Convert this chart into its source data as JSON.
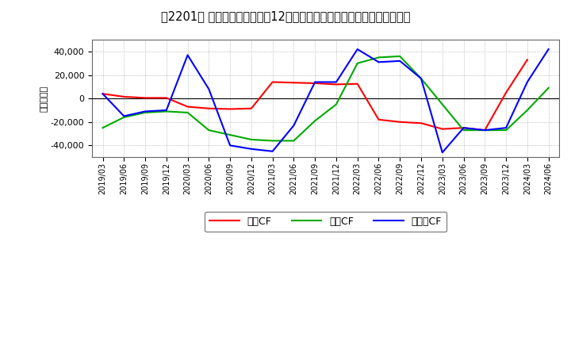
{
  "title_str": "【2201】 キャッシュフローの12か月移動合計の対前年同期増減額の推移",
  "ylabel": "（百万円）",
  "x_labels": [
    "2019/03",
    "2019/06",
    "2019/09",
    "2019/12",
    "2020/03",
    "2020/06",
    "2020/09",
    "2020/12",
    "2021/03",
    "2021/06",
    "2021/09",
    "2021/12",
    "2022/03",
    "2022/06",
    "2022/09",
    "2022/12",
    "2023/03",
    "2023/06",
    "2023/09",
    "2023/12",
    "2024/03",
    "2024/06"
  ],
  "operating_cf": [
    4000,
    1500,
    500,
    500,
    -7000,
    -8500,
    -9000,
    -8500,
    14000,
    13500,
    13000,
    12000,
    12500,
    -18000,
    -20000,
    -21000,
    -26000,
    -25000,
    -27000,
    5000,
    33000,
    null
  ],
  "investing_cf": [
    -25000,
    -16000,
    -12000,
    -11000,
    -12000,
    -27000,
    -31000,
    -35000,
    -36000,
    -36000,
    -19000,
    -5000,
    30000,
    35000,
    36000,
    17000,
    -5000,
    -27000,
    -27000,
    -27000,
    -10000,
    9000
  ],
  "free_cf": [
    4000,
    -15000,
    -11000,
    -10000,
    37000,
    8000,
    -40000,
    -43000,
    -45000,
    -23000,
    14000,
    14000,
    42000,
    31000,
    32000,
    17000,
    -46000,
    -25000,
    -27000,
    -25000,
    14000,
    42000
  ],
  "operating_color": "#ff0000",
  "investing_color": "#00aa00",
  "free_color": "#0000ff",
  "ylim": [
    -50000,
    50000
  ],
  "yticks": [
    -40000,
    -20000,
    0,
    20000,
    40000
  ],
  "background_color": "#ffffff",
  "grid_color": "#aaaaaa",
  "legend_labels": [
    "営業CF",
    "投資CF",
    "フリーCF"
  ]
}
